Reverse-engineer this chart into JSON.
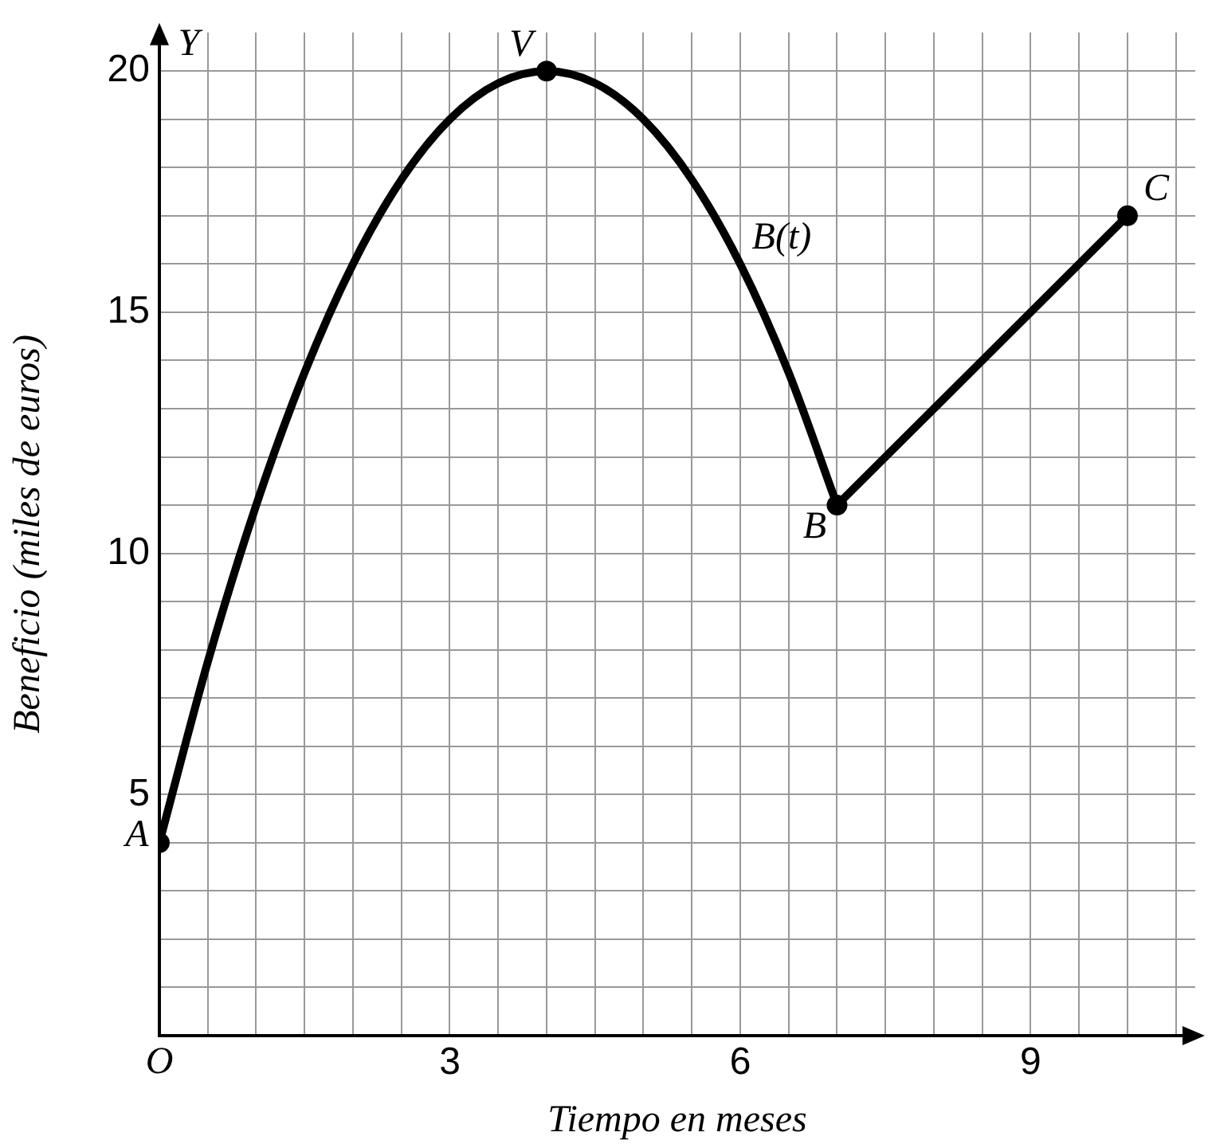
{
  "chart_data": {
    "type": "line",
    "xlabel": "Tiempo en meses",
    "ylabel": "Beneficio (miles de euros)",
    "xlim": [
      0,
      10.7
    ],
    "ylim": [
      0,
      20.8
    ],
    "xticks": [
      {
        "value": 0,
        "label": "O"
      },
      {
        "value": 0.5,
        "label": null
      },
      {
        "value": 1,
        "label": null
      },
      {
        "value": 1.5,
        "label": null
      },
      {
        "value": 2,
        "label": null
      },
      {
        "value": 2.5,
        "label": null
      },
      3,
      {
        "value": 3.5,
        "label": null
      },
      {
        "value": 4,
        "label": null
      },
      {
        "value": 4.5,
        "label": null
      },
      {
        "value": 5,
        "label": null
      },
      {
        "value": 5.5,
        "label": null
      },
      6,
      {
        "value": 6.5,
        "label": null
      },
      {
        "value": 7,
        "label": null
      },
      {
        "value": 7.5,
        "label": null
      },
      {
        "value": 8,
        "label": null
      },
      {
        "value": 8.5,
        "label": null
      },
      9,
      {
        "value": 9.5,
        "label": null
      },
      {
        "value": 10,
        "label": null
      },
      {
        "value": 10.5,
        "label": null
      }
    ],
    "yticks": [
      {
        "value": 1,
        "label": null
      },
      {
        "value": 2,
        "label": null
      },
      {
        "value": 3,
        "label": null
      },
      {
        "value": 4,
        "label": null
      },
      5,
      {
        "value": 6,
        "label": null
      },
      {
        "value": 7,
        "label": null
      },
      {
        "value": 8,
        "label": null
      },
      {
        "value": 9,
        "label": null
      },
      10,
      {
        "value": 11,
        "label": null
      },
      {
        "value": 12,
        "label": null
      },
      {
        "value": 13,
        "label": null
      },
      {
        "value": 14,
        "label": null
      },
      15,
      {
        "value": 16,
        "label": null
      },
      {
        "value": 17,
        "label": null
      },
      {
        "value": 18,
        "label": null
      },
      {
        "value": 19,
        "label": null
      },
      20
    ],
    "grid": true,
    "legend": false,
    "series": [
      {
        "color": "#000000",
        "marker": "none",
        "x": [
          0,
          0.5,
          1,
          1.5,
          2,
          2.5,
          3,
          3.5,
          4,
          4.5,
          5,
          5.5,
          6,
          6.5,
          7
        ],
        "values": [
          4,
          7.75,
          11,
          13.75,
          16,
          17.75,
          19,
          19.75,
          20,
          19.75,
          19,
          17.75,
          16,
          13.75,
          11
        ]
      },
      {
        "color": "#000000",
        "marker": "none",
        "line_style": "solid",
        "x": [
          7,
          10
        ],
        "values": [
          11,
          17
        ]
      },
      {
        "type": "scatter",
        "color": "#000000",
        "marker": "circle",
        "x": [
          0,
          4,
          7,
          10
        ],
        "values": [
          4,
          20,
          11,
          17
        ]
      }
    ],
    "annotations": [
      {
        "text": "A",
        "x": 0,
        "y": 4
      },
      {
        "text": "V",
        "x": 4,
        "y": 20
      },
      {
        "text": "B",
        "x": 7,
        "y": 11
      },
      {
        "text": "C",
        "x": 10,
        "y": 17
      },
      "B(t)",
      "Y"
    ]
  }
}
